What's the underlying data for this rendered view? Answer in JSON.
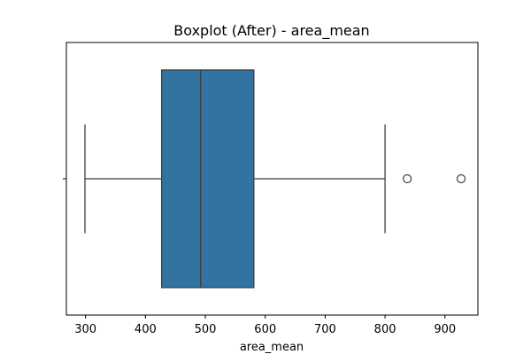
{
  "chart_data": {
    "type": "box",
    "title": "Boxplot (After) - area_mean",
    "xlabel": "area_mean",
    "ylabel": "",
    "xlim": [
      268,
      955
    ],
    "xticks": [
      300,
      400,
      500,
      600,
      700,
      800,
      900
    ],
    "xtick_labels": [
      "300",
      "400",
      "500",
      "600",
      "700",
      "800",
      "900"
    ],
    "grid": false,
    "box": {
      "whisker_low": 299,
      "q1": 427,
      "median": 492,
      "q3": 581,
      "whisker_high": 800,
      "outliers": [
        837,
        927
      ]
    },
    "colors": {
      "box_fill": "#3274a1",
      "line": "#3f3f3f"
    }
  }
}
